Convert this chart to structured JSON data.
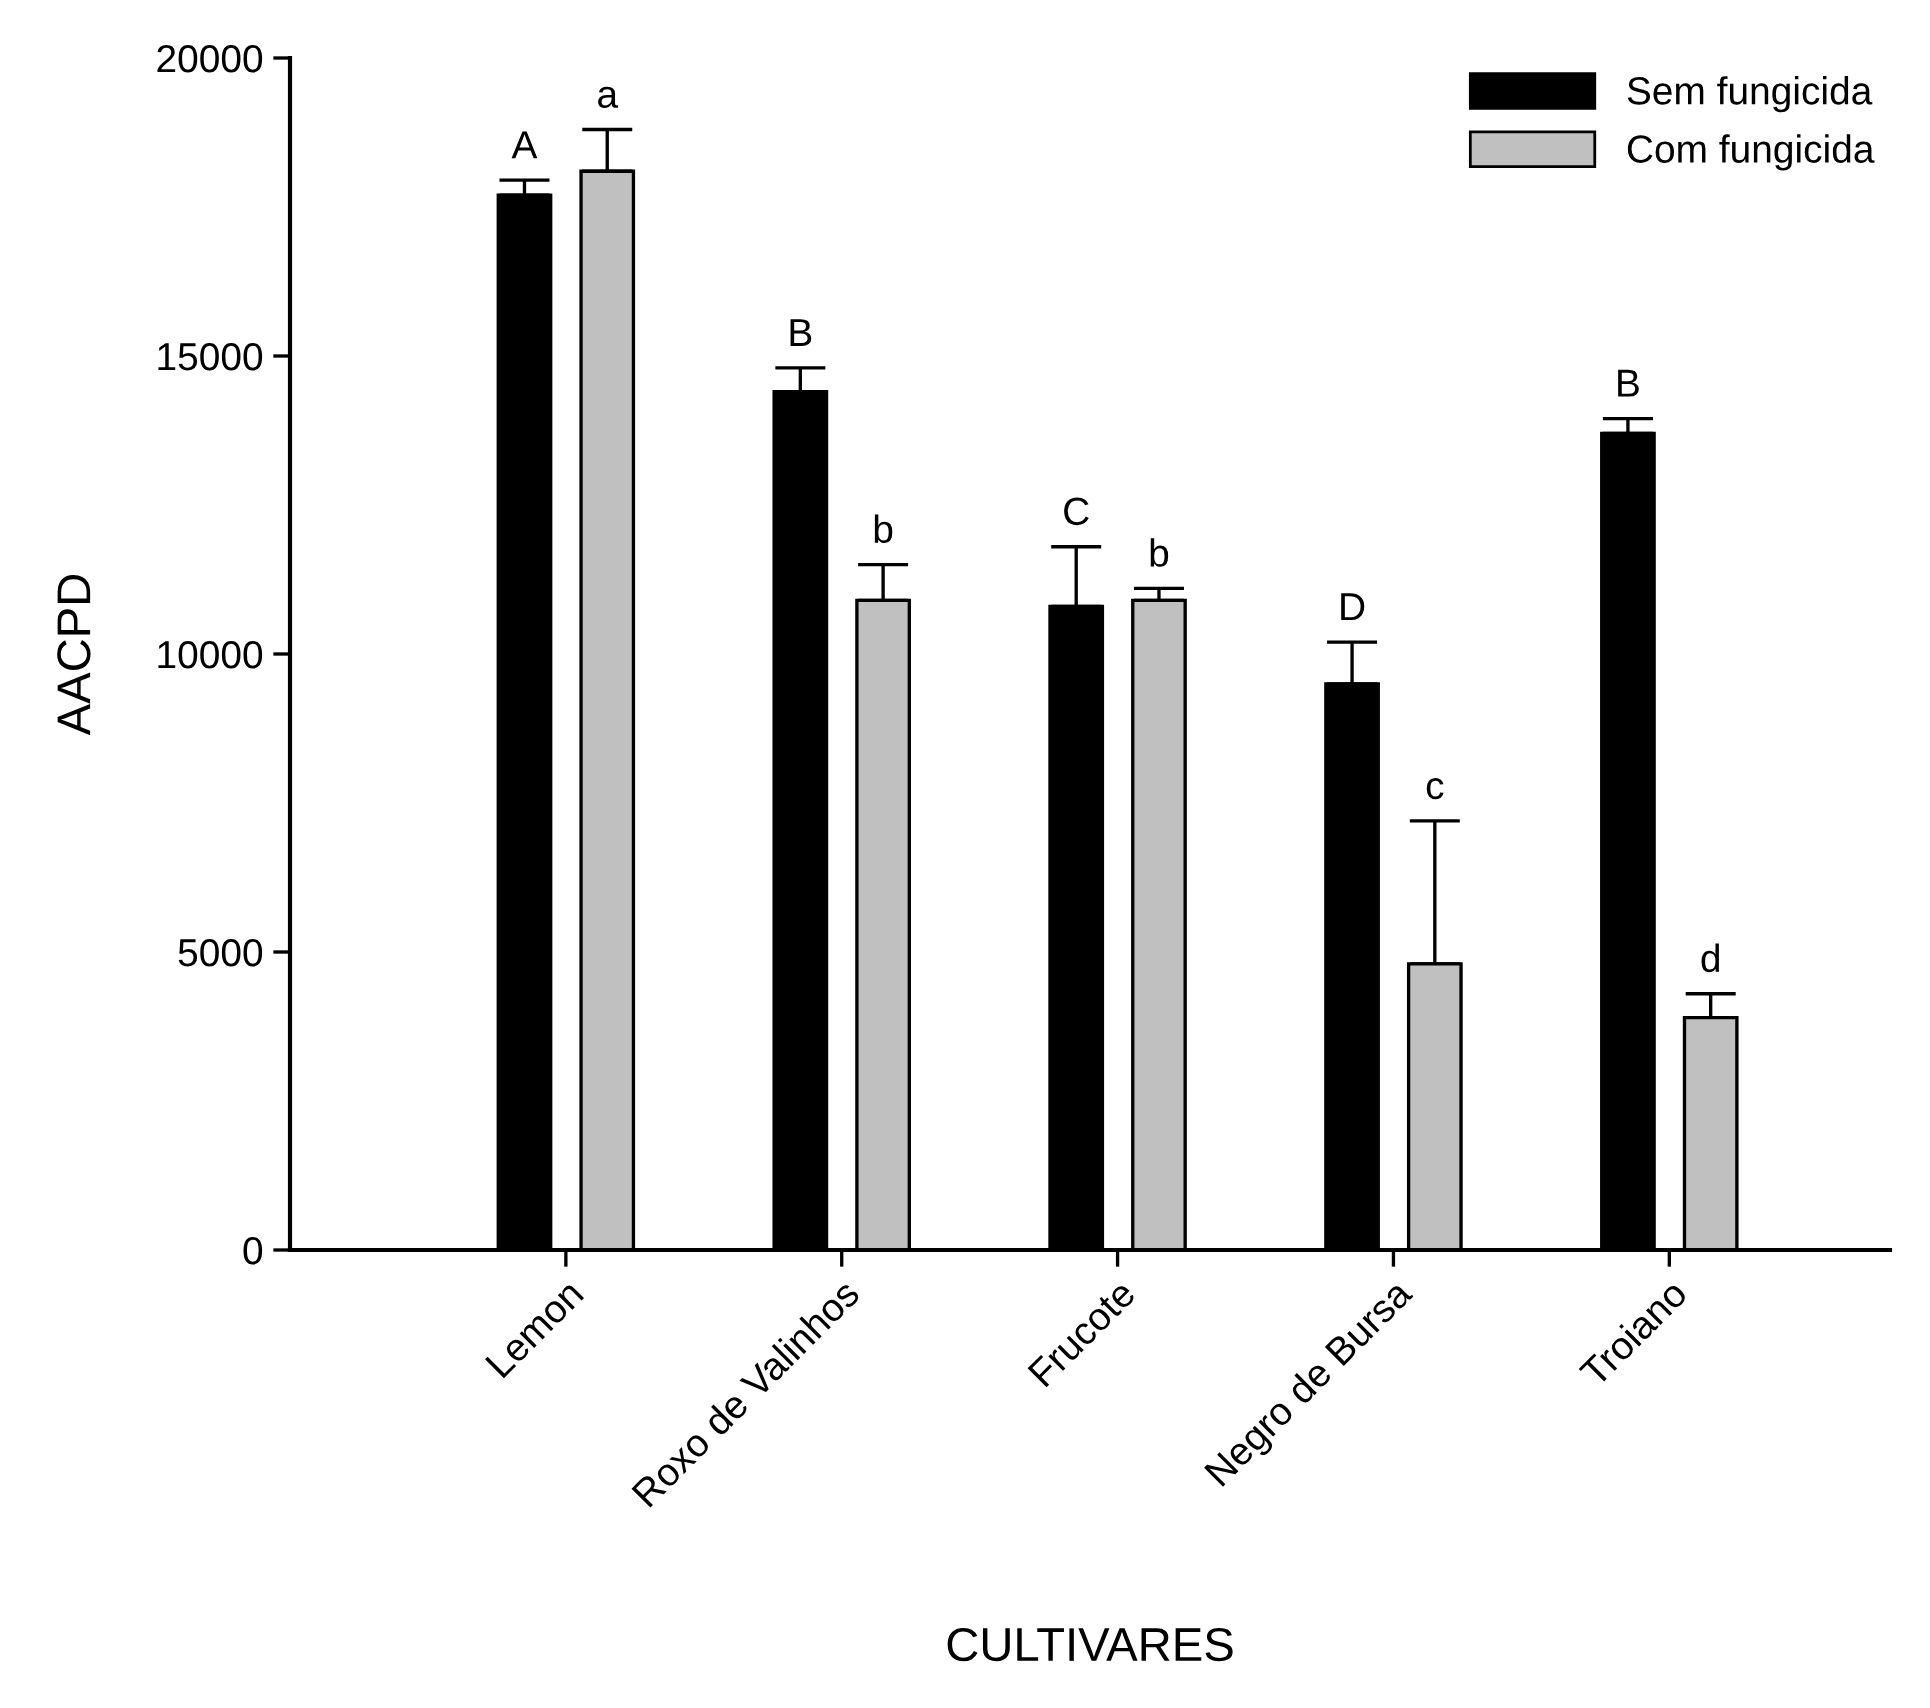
{
  "chart_data": {
    "type": "bar",
    "xlabel": "CULTIVARES",
    "ylabel": "AACPD",
    "categories": [
      "Lemon",
      "Roxo de Valinhos",
      "Frucote",
      "Negro de Bursa",
      "Troiano"
    ],
    "series": [
      {
        "name": "Sem fungicida",
        "color": "#000000",
        "values": [
          17700,
          14400,
          10800,
          9500,
          13700
        ],
        "errors": [
          250,
          400,
          1000,
          700,
          250
        ]
      },
      {
        "name": "Com fungicida",
        "color": "#c0c0c0",
        "values": [
          18100,
          10900,
          10900,
          4800,
          3900
        ],
        "errors": [
          700,
          600,
          200,
          2400,
          400
        ]
      }
    ],
    "ylim": [
      0,
      20000
    ],
    "yticks": [
      0,
      5000,
      10000,
      15000,
      20000
    ],
    "grid": false,
    "legend": "top right",
    "annotations": [
      "A",
      "a",
      "B",
      "b",
      "C",
      "b",
      "D",
      "c",
      "B",
      "d"
    ]
  }
}
